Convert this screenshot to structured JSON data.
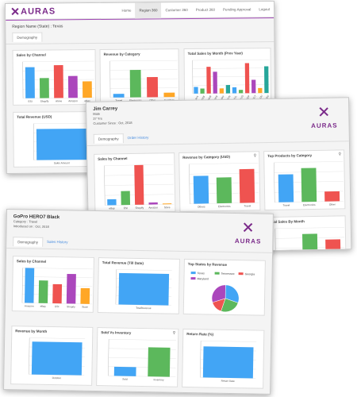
{
  "colors": {
    "blue": "#42a5f5",
    "green": "#5cb85c",
    "red": "#ef5350",
    "purple": "#ab47bc",
    "orange": "#ffa726",
    "teal": "#26a69a",
    "purpleBrand": "#7b2b8a"
  },
  "window1": {
    "logo": "AURAS",
    "nav": [
      "Home",
      "Region 360",
      "Customer 360",
      "Product 360",
      "Pending Approval",
      "Logout"
    ],
    "active_nav": "Region 360",
    "region_title": "Region Name (State) : Texas",
    "tab": "Demography",
    "charts": {
      "sales_channel": {
        "title": "Sales by Channel",
        "categories": [
          "ESI",
          "Shopify",
          "Alone",
          "Amazon",
          "eBay"
        ],
        "values": [
          85,
          55,
          90,
          60,
          45
        ]
      },
      "revenue_category": {
        "title": "Revenue by Category",
        "categories": [
          "Travel",
          "Electronics",
          "Other",
          "Furniture"
        ],
        "values": [
          10,
          75,
          55,
          12
        ]
      },
      "sales_month": {
        "title": "Total Sales by Month (Prev Year)",
        "categories": [
          "JAN",
          "FEB",
          "MAR",
          "APR",
          "MAY",
          "JUN",
          "JUL",
          "AUG",
          "SEP",
          "OCT",
          "NOV",
          "DEC"
        ],
        "values": [
          20,
          15,
          80,
          65,
          15,
          25,
          18,
          10,
          90,
          40,
          15,
          80
        ]
      },
      "total_revenue": {
        "title": "Total Revenue (USD)",
        "categories": [
          "Sales Amount"
        ],
        "values": [
          85
        ]
      }
    }
  },
  "window2": {
    "name": "Jim Carrey",
    "lines": [
      "Male",
      "27 Yrs",
      "Customer Since : Oct, 2018"
    ],
    "logo": "AURAS",
    "tabs": [
      "Demography",
      "Order History"
    ],
    "charts": {
      "sales_channel": {
        "title": "Sales by Channel",
        "categories": [
          "eBay",
          "ESI",
          "Shopify",
          "Amazon",
          "Store"
        ],
        "values": [
          15,
          35,
          100,
          5,
          2
        ]
      },
      "revenue_category": {
        "title": "Revenue by Category (USD)",
        "categories": [
          "Others",
          "Electronics",
          "Travel"
        ],
        "values": [
          70,
          65,
          85
        ]
      },
      "top_products": {
        "title": "Top Products by Category",
        "categories": [
          "Travel",
          "Electronics",
          "Other"
        ],
        "values": [
          70,
          85,
          25
        ]
      },
      "sales_month": {
        "title": "Total Sales By Month",
        "categories": [
          "FEB",
          "OCT",
          "NOV"
        ],
        "values": [
          35,
          85,
          70
        ]
      }
    }
  },
  "window3": {
    "name": "GoPro HERO7 Black",
    "lines": [
      "Category : Travel",
      "Introduced on : Oct, 2018"
    ],
    "logo": "AURAS",
    "tabs": [
      "Demography",
      "Sales History"
    ],
    "charts": {
      "sales_channel": {
        "title": "Sales by Channel",
        "categories": [
          "Amazon",
          "eBay",
          "ESI",
          "Shopify",
          "Store"
        ],
        "values": [
          100,
          65,
          55,
          85,
          45
        ]
      },
      "total_revenue": {
        "title": "Total Revenue (Till Date)",
        "categories": [
          "TotalRevenue"
        ],
        "values": [
          90
        ]
      },
      "top_states": {
        "title": "Top States by Revenue",
        "legend": [
          "Texas",
          "Tennessee",
          "Georgia",
          "Maryland"
        ],
        "values": [
          30,
          25,
          15,
          30
        ]
      },
      "revenue_month": {
        "title": "Revenue by Month",
        "categories": [
          "October"
        ],
        "values": [
          90
        ]
      },
      "sold_inventory": {
        "title": "Sold Vs Inventory",
        "categories": [
          "Sold",
          "Inventory"
        ],
        "values": [
          25,
          80
        ]
      },
      "return_rate": {
        "title": "Return Rate (%)",
        "categories": [
          "Return Rate"
        ],
        "values": [
          85
        ]
      }
    }
  }
}
